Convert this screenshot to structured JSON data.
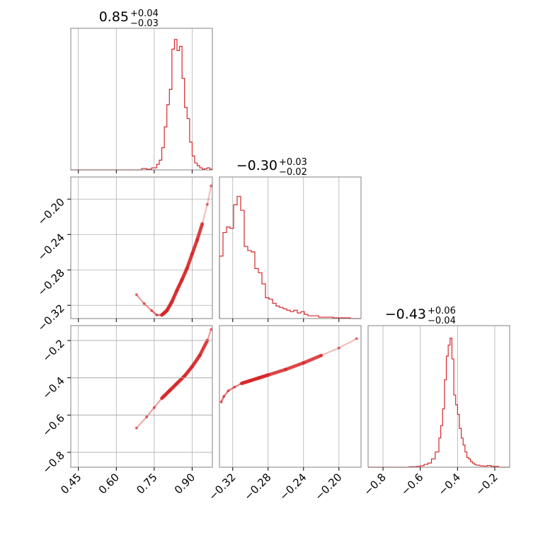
{
  "colors": {
    "series": "#d62728",
    "grid": "#b0b0b0",
    "frame": "#808080",
    "background": "#ffffff"
  },
  "chart_data": {
    "type": "corner",
    "parameters": [
      {
        "median_label": "0.85",
        "plus_label": "+0.04",
        "minus_label": "−0.03",
        "range": [
          0.42,
          0.98
        ],
        "ticks": [
          0.45,
          0.6,
          0.75,
          0.9
        ],
        "tick_labels": [
          "0.45",
          "0.60",
          "0.75",
          "0.90"
        ],
        "histogram": {
          "edges": [
            0.7,
            0.72,
            0.74,
            0.76,
            0.77,
            0.78,
            0.79,
            0.8,
            0.81,
            0.82,
            0.83,
            0.84,
            0.85,
            0.86,
            0.87,
            0.88,
            0.89,
            0.9,
            0.91,
            0.92,
            0.93,
            0.94,
            0.95,
            0.96,
            0.97,
            0.98
          ],
          "counts": [
            0.01,
            0.005,
            0.015,
            0.04,
            0.07,
            0.16,
            0.31,
            0.47,
            0.58,
            0.87,
            0.94,
            0.86,
            0.89,
            0.66,
            0.45,
            0.37,
            0.2,
            0.1,
            0.05,
            0.03,
            0.015,
            0.005,
            0.01,
            0.015,
            0.005
          ]
        }
      },
      {
        "median_label": "−0.30",
        "plus_label": "+0.03",
        "minus_label": "−0.02",
        "range": [
          -0.335,
          -0.175
        ],
        "ticks": [
          -0.32,
          -0.28,
          -0.24,
          -0.2
        ],
        "tick_labels": [
          "−0.32",
          "−0.28",
          "−0.24",
          "−0.20"
        ],
        "histogram": {
          "edges": [
            -0.335,
            -0.331,
            -0.327,
            -0.323,
            -0.319,
            -0.315,
            -0.311,
            -0.307,
            -0.303,
            -0.299,
            -0.295,
            -0.291,
            -0.287,
            -0.283,
            -0.279,
            -0.275,
            -0.271,
            -0.267,
            -0.263,
            -0.259,
            -0.255,
            -0.251,
            -0.247,
            -0.243,
            -0.239,
            -0.235,
            -0.231,
            -0.227,
            -0.223,
            -0.219,
            -0.215,
            -0.211,
            -0.207,
            -0.203,
            -0.199,
            -0.195,
            -0.191,
            -0.187,
            -0.183,
            -0.179,
            -0.175
          ],
          "counts": [
            0.45,
            0.62,
            0.66,
            0.65,
            0.82,
            0.88,
            0.78,
            0.52,
            0.49,
            0.48,
            0.36,
            0.33,
            0.25,
            0.15,
            0.14,
            0.11,
            0.09,
            0.08,
            0.07,
            0.06,
            0.05,
            0.06,
            0.04,
            0.05,
            0.03,
            0.02,
            0.02,
            0.02,
            0.01,
            0.01,
            0.01,
            0.01,
            0.005,
            0.005,
            0.005,
            0.005,
            0.005,
            0,
            0,
            0
          ]
        }
      },
      {
        "median_label": "−0.43",
        "plus_label": "+0.06",
        "minus_label": "−0.04",
        "range": [
          -0.88,
          -0.12
        ],
        "ticks": [
          -0.8,
          -0.6,
          -0.4,
          -0.2
        ],
        "tick_labels": [
          "−0.8",
          "−0.6",
          "−0.4",
          "−0.2"
        ],
        "histogram": {
          "edges": [
            -0.66,
            -0.62,
            -0.6,
            -0.58,
            -0.56,
            -0.54,
            -0.52,
            -0.5,
            -0.49,
            -0.48,
            -0.47,
            -0.46,
            -0.45,
            -0.44,
            -0.43,
            -0.42,
            -0.41,
            -0.4,
            -0.39,
            -0.38,
            -0.37,
            -0.36,
            -0.35,
            -0.34,
            -0.33,
            -0.32,
            -0.31,
            -0.3,
            -0.28,
            -0.26,
            -0.24,
            -0.22,
            -0.18
          ],
          "counts": [
            0.003,
            0.006,
            0.01,
            0.02,
            0.03,
            0.06,
            0.11,
            0.21,
            0.3,
            0.42,
            0.63,
            0.8,
            0.88,
            0.93,
            0.78,
            0.52,
            0.45,
            0.38,
            0.28,
            0.21,
            0.16,
            0.11,
            0.07,
            0.06,
            0.04,
            0.03,
            0.02,
            0.015,
            0.01,
            0.008,
            0.012,
            0.006
          ]
        }
      }
    ],
    "scatter": [
      {
        "x_param": 0,
        "y_param": 1,
        "points": [
          [
            0.68,
            -0.308
          ],
          [
            0.71,
            -0.318
          ],
          [
            0.74,
            -0.326
          ],
          [
            0.76,
            -0.331
          ],
          [
            0.78,
            -0.331
          ],
          [
            0.8,
            -0.326
          ],
          [
            0.82,
            -0.316
          ],
          [
            0.84,
            -0.303
          ],
          [
            0.86,
            -0.291
          ],
          [
            0.88,
            -0.278
          ],
          [
            0.9,
            -0.262
          ],
          [
            0.92,
            -0.246
          ],
          [
            0.94,
            -0.228
          ],
          [
            0.96,
            -0.206
          ],
          [
            0.975,
            -0.185
          ]
        ]
      },
      {
        "x_param": 0,
        "y_param": 2,
        "points": [
          [
            0.68,
            -0.67
          ],
          [
            0.72,
            -0.61
          ],
          [
            0.75,
            -0.56
          ],
          [
            0.78,
            -0.51
          ],
          [
            0.81,
            -0.47
          ],
          [
            0.84,
            -0.43
          ],
          [
            0.87,
            -0.39
          ],
          [
            0.9,
            -0.34
          ],
          [
            0.93,
            -0.28
          ],
          [
            0.96,
            -0.2
          ],
          [
            0.975,
            -0.14
          ]
        ]
      },
      {
        "x_param": 1,
        "y_param": 2,
        "points": [
          [
            -0.333,
            -0.53
          ],
          [
            -0.33,
            -0.5
          ],
          [
            -0.325,
            -0.47
          ],
          [
            -0.318,
            -0.45
          ],
          [
            -0.31,
            -0.43
          ],
          [
            -0.3,
            -0.415
          ],
          [
            -0.29,
            -0.4
          ],
          [
            -0.28,
            -0.385
          ],
          [
            -0.26,
            -0.355
          ],
          [
            -0.24,
            -0.32
          ],
          [
            -0.22,
            -0.28
          ],
          [
            -0.2,
            -0.24
          ],
          [
            -0.18,
            -0.19
          ]
        ]
      }
    ]
  }
}
